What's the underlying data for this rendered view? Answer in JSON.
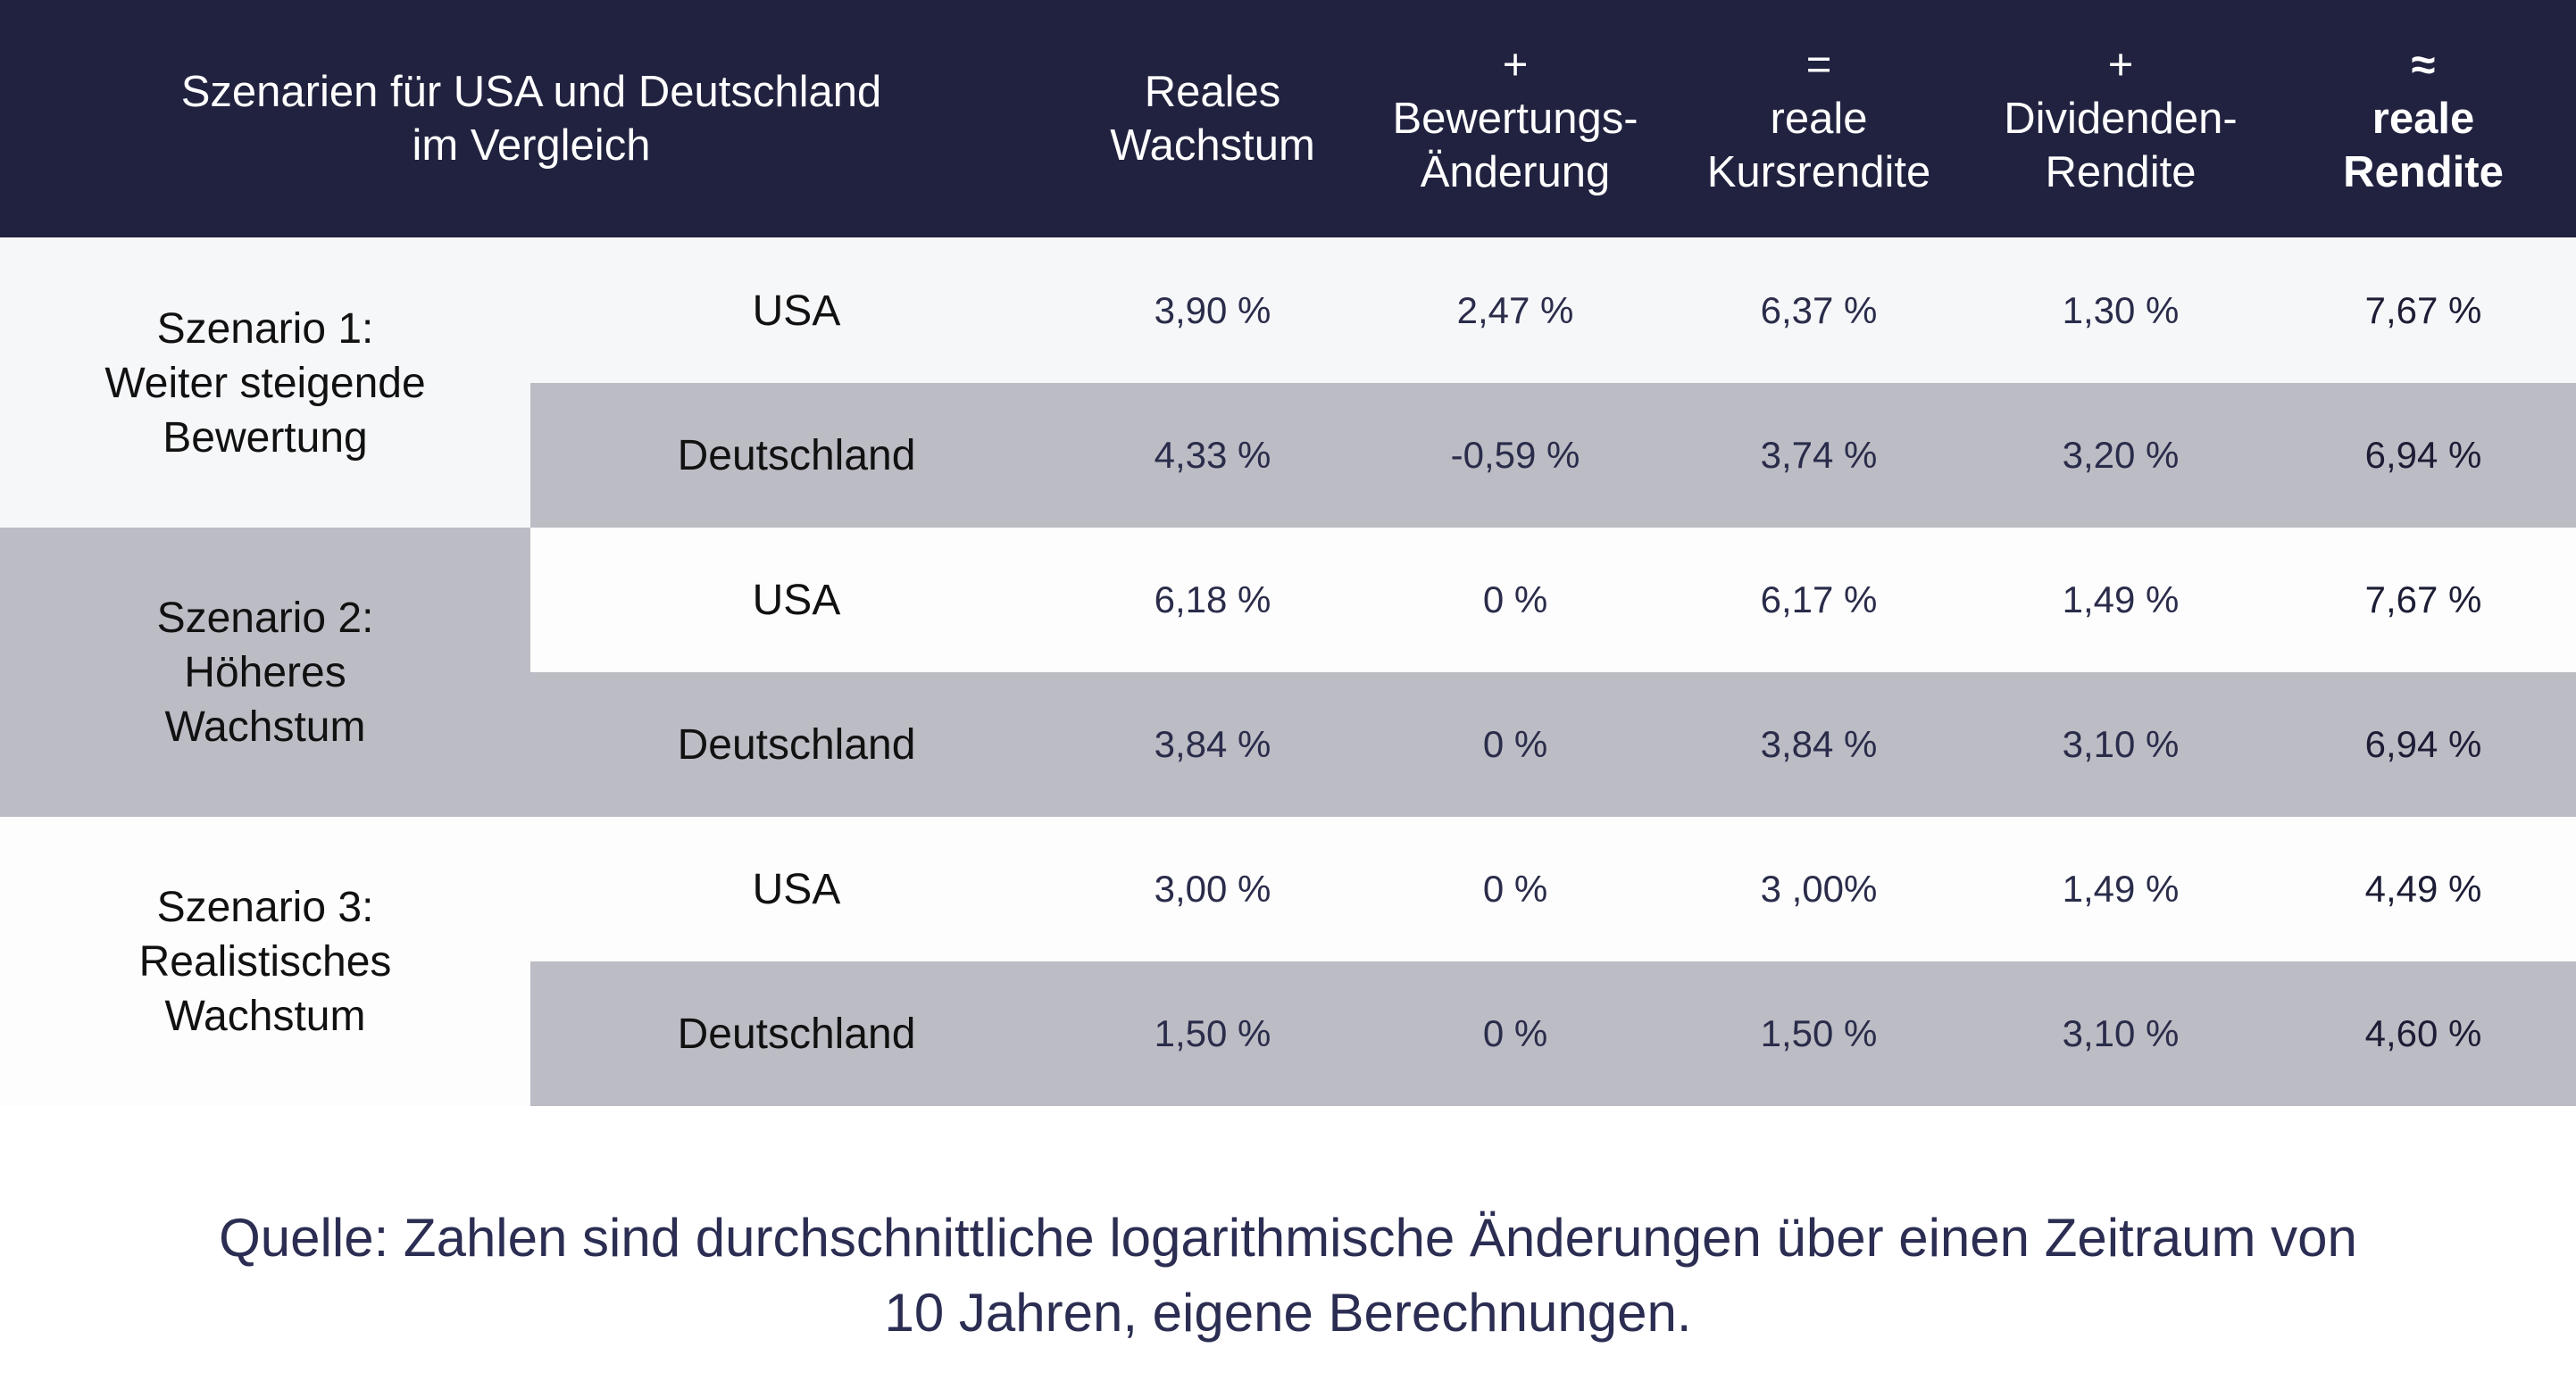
{
  "header": {
    "title_line1": "Szenarien für USA und Deutschland",
    "title_line2": "im Vergleich",
    "columns": [
      {
        "op": "",
        "line1": "Reales",
        "line2": "Wachstum"
      },
      {
        "op": "+",
        "line1": "Bewertungs-",
        "line2": "Änderung"
      },
      {
        "op": "=",
        "line1": "reale",
        "line2": "Kursrendite"
      },
      {
        "op": "+",
        "line1": "Dividenden-",
        "line2": "Rendite"
      },
      {
        "op": "≈",
        "line1": "reale",
        "line2": "Rendite"
      }
    ]
  },
  "scenarios": [
    {
      "label_line1": "Szenario 1:",
      "label_line2": "Weiter steigende",
      "label_line3": "Bewertung",
      "rows": [
        {
          "country": "USA",
          "values": [
            "3,90 %",
            "2,47 %",
            "6,37 %",
            "1,30 %",
            "7,67 %"
          ]
        },
        {
          "country": "Deutschland",
          "values": [
            "4,33 %",
            "-0,59 %",
            "3,74 %",
            "3,20 %",
            "6,94 %"
          ]
        }
      ]
    },
    {
      "label_line1": "Szenario 2:",
      "label_line2": "Höheres",
      "label_line3": "Wachstum",
      "rows": [
        {
          "country": "USA",
          "values": [
            "6,18 %",
            "0 %",
            "6,17 %",
            "1,49 %",
            "7,67 %"
          ]
        },
        {
          "country": "Deutschland",
          "values": [
            "3,84 %",
            "0 %",
            "3,84 %",
            "3,10 %",
            "6,94 %"
          ]
        }
      ]
    },
    {
      "label_line1": "Szenario 3:",
      "label_line2": "Realistisches",
      "label_line3": "Wachstum",
      "rows": [
        {
          "country": "USA",
          "values": [
            "3,00 %",
            "0 %",
            "3 ,00%",
            "1,49 %",
            "4,49 %"
          ]
        },
        {
          "country": "Deutschland",
          "values": [
            "1,50 %",
            "0 %",
            "1,50 %",
            "3,10 %",
            "4,60 %"
          ]
        }
      ]
    }
  ],
  "footer": {
    "line1": "Quelle: Zahlen sind durchschnittliche logarithmische Änderungen über einen Zeitraum von",
    "line2": "10 Jahren, eigene Berechnungen."
  },
  "colors": {
    "header_bg": "#20223f",
    "row_light": "#f6f7f9",
    "row_gray": "#bcbcc5",
    "row_white": "#fcfdfc"
  }
}
